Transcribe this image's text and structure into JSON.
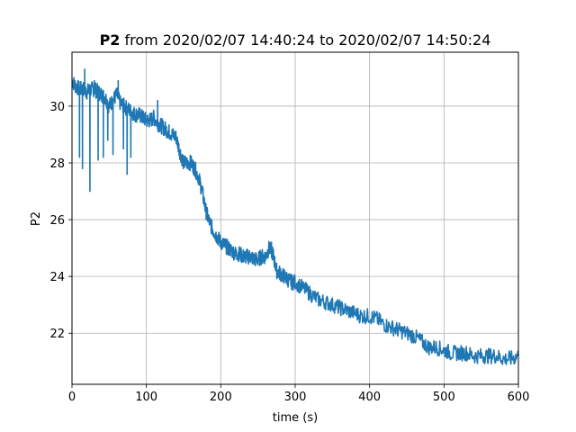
{
  "chart_data": {
    "type": "line",
    "title_bold": "P2",
    "title_rest": " from 2020/02/07 14:40:24 to 2020/02/07 14:50:24",
    "xlabel": "time (s)",
    "ylabel": "P2",
    "xlim": [
      0,
      600
    ],
    "ylim": [
      20.2,
      31.9
    ],
    "xticks": [
      0,
      100,
      200,
      300,
      400,
      500,
      600
    ],
    "yticks": [
      22,
      24,
      26,
      28,
      30
    ],
    "grid": true,
    "line_color": "#1f77b4",
    "series": [
      {
        "x": [
          0,
          5,
          10,
          15,
          20,
          25,
          30,
          35,
          40,
          45,
          50,
          55,
          60,
          65,
          70,
          75,
          80,
          85,
          90,
          95,
          100,
          105,
          110,
          115,
          120,
          125,
          130,
          135,
          140,
          145,
          150,
          155,
          160,
          165,
          170,
          175,
          180,
          185,
          190,
          195,
          200,
          205,
          210,
          215,
          220,
          225,
          230,
          235,
          240,
          245,
          250,
          255,
          260,
          265,
          270,
          275,
          280,
          285,
          290,
          295,
          300,
          310,
          320,
          330,
          340,
          350,
          360,
          370,
          380,
          390,
          400,
          410,
          420,
          430,
          440,
          450,
          460,
          470,
          480,
          490,
          500,
          510,
          520,
          530,
          540,
          550,
          560,
          570,
          580,
          590,
          600
        ],
        "y": [
          30.9,
          30.7,
          30.6,
          30.6,
          30.5,
          30.6,
          30.6,
          30.5,
          30.4,
          30.3,
          30.0,
          30.2,
          30.4,
          30.1,
          30.0,
          29.9,
          29.8,
          29.7,
          29.7,
          29.6,
          29.5,
          29.5,
          29.6,
          29.4,
          29.3,
          29.2,
          29.1,
          29.0,
          28.9,
          28.4,
          28.0,
          28.0,
          28.0,
          27.8,
          27.5,
          27.0,
          26.3,
          25.9,
          25.6,
          25.4,
          25.2,
          25.1,
          25.0,
          24.9,
          24.8,
          24.8,
          24.7,
          24.7,
          24.7,
          24.6,
          24.6,
          24.7,
          24.7,
          25.0,
          24.8,
          24.2,
          24.1,
          24.0,
          23.9,
          23.8,
          23.8,
          23.6,
          23.4,
          23.2,
          23.1,
          23.0,
          22.9,
          22.8,
          22.7,
          22.6,
          22.6,
          22.5,
          22.3,
          22.2,
          22.1,
          22.0,
          21.9,
          21.7,
          21.5,
          21.5,
          21.4,
          21.3,
          21.3,
          21.3,
          21.2,
          21.2,
          21.2,
          21.2,
          21.1,
          21.1,
          21.2
        ]
      }
    ],
    "spikes": [
      {
        "x": 10,
        "y": 28.2
      },
      {
        "x": 14,
        "y": 27.8
      },
      {
        "x": 17,
        "y": 31.3
      },
      {
        "x": 24,
        "y": 27.0
      },
      {
        "x": 30,
        "y": 30.9
      },
      {
        "x": 35,
        "y": 28.1
      },
      {
        "x": 42,
        "y": 28.2
      },
      {
        "x": 48,
        "y": 28.8
      },
      {
        "x": 55,
        "y": 28.3
      },
      {
        "x": 62,
        "y": 30.9
      },
      {
        "x": 69,
        "y": 28.5
      },
      {
        "x": 74,
        "y": 27.6
      },
      {
        "x": 79,
        "y": 28.2
      },
      {
        "x": 115,
        "y": 30.2
      },
      {
        "x": 138,
        "y": 29.1
      },
      {
        "x": 268,
        "y": 25.2
      }
    ]
  }
}
